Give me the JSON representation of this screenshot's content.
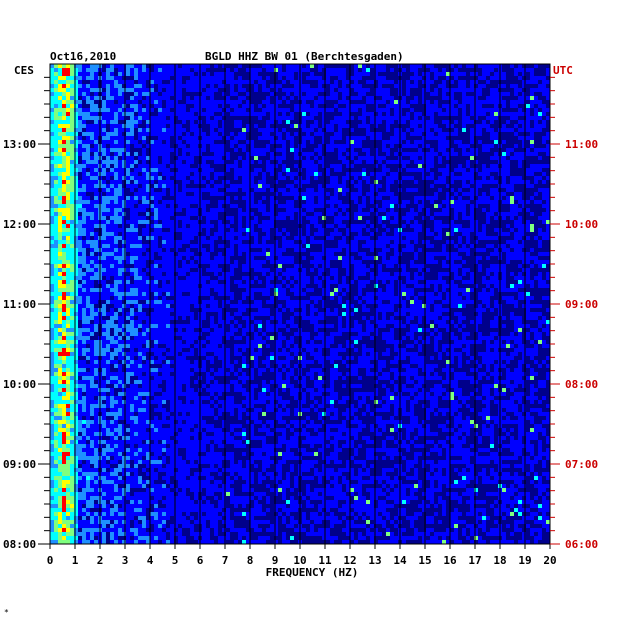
{
  "chart_data": {
    "type": "heatmap",
    "header_date": "Oct16,2010",
    "title": "BGLD HHZ BW 01 (Berchtesgaden)",
    "xlabel": "FREQUENCY (HZ)",
    "xlim": [
      0,
      20
    ],
    "x_ticks": [
      "0",
      "1",
      "2",
      "3",
      "4",
      "5",
      "6",
      "7",
      "8",
      "9",
      "10",
      "11",
      "12",
      "13",
      "14",
      "15",
      "16",
      "17",
      "18",
      "19",
      "20"
    ],
    "left_axis": {
      "label": "CES",
      "ticks": [
        {
          "label": "13:00",
          "hours_from_bottom": 5
        },
        {
          "label": "12:00",
          "hours_from_bottom": 4
        },
        {
          "label": "11:00",
          "hours_from_bottom": 3
        },
        {
          "label": "10:00",
          "hours_from_bottom": 2
        },
        {
          "label": "09:00",
          "hours_from_bottom": 1
        },
        {
          "label": "08:00",
          "hours_from_bottom": 0
        }
      ]
    },
    "right_axis": {
      "label": "UTC",
      "ticks": [
        {
          "label": "11:00",
          "hours_from_bottom": 5
        },
        {
          "label": "10:00",
          "hours_from_bottom": 4
        },
        {
          "label": "09:00",
          "hours_from_bottom": 3
        },
        {
          "label": "08:00",
          "hours_from_bottom": 2
        },
        {
          "label": "07:00",
          "hours_from_bottom": 1
        },
        {
          "label": "06:00",
          "hours_from_bottom": 0
        }
      ]
    },
    "time_span_hours": 6,
    "vertical_gridlines_every_hz": 1,
    "color_scale": [
      "#00008b",
      "#0000ff",
      "#1e90ff",
      "#00ffff",
      "#7fff7f",
      "#ffff00",
      "#ff0000"
    ],
    "dominant_band_hz": [
      0,
      1
    ],
    "footer_mark": "*"
  }
}
